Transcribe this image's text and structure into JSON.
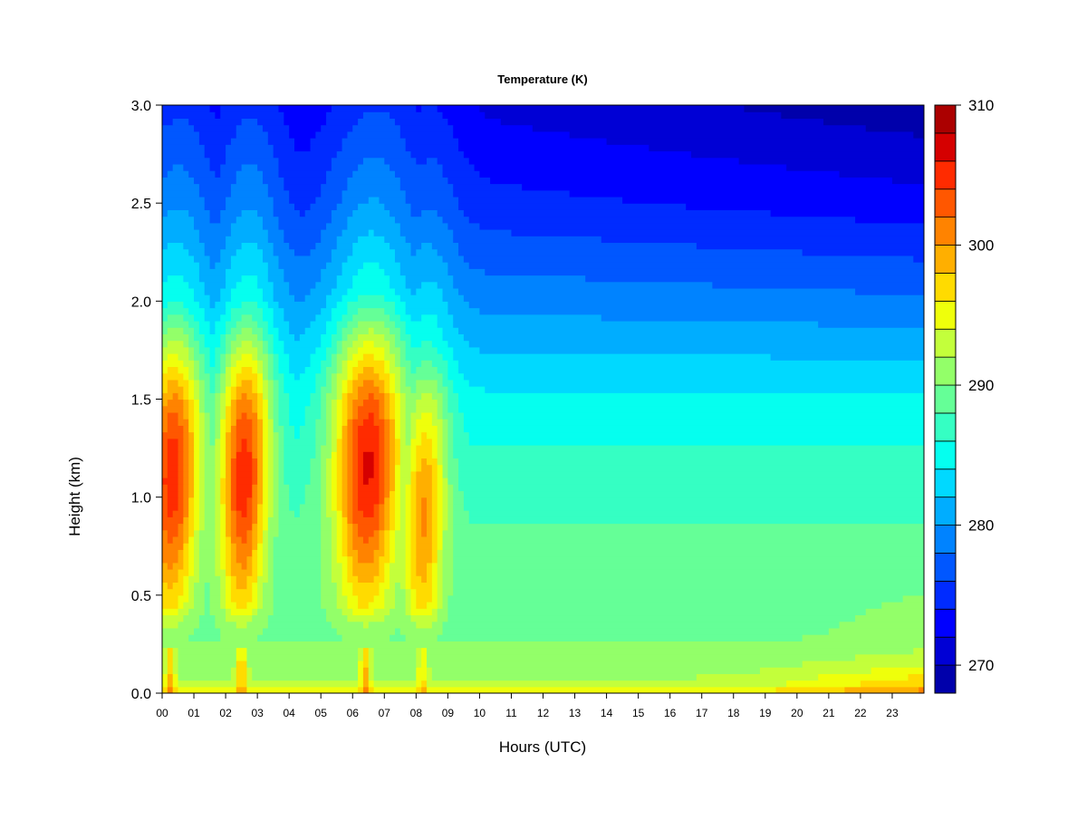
{
  "chart_data": {
    "type": "heatmap",
    "title": "Temperature (K)",
    "xlabel": "Hours (UTC)",
    "ylabel": "Height (km)",
    "xlim": [
      0,
      24
    ],
    "ylim": [
      0.0,
      3.0
    ],
    "x_ticks": [
      0,
      1,
      2,
      3,
      4,
      5,
      6,
      7,
      8,
      9,
      10,
      11,
      12,
      13,
      14,
      15,
      16,
      17,
      18,
      19,
      20,
      21,
      22,
      23
    ],
    "x_tick_labels": [
      "00",
      "01",
      "02",
      "03",
      "04",
      "05",
      "06",
      "07",
      "08",
      "09",
      "10",
      "11",
      "12",
      "13",
      "14",
      "15",
      "16",
      "17",
      "18",
      "19",
      "20",
      "21",
      "22",
      "23"
    ],
    "y_ticks": [
      0.0,
      0.5,
      1.0,
      1.5,
      2.0,
      2.5,
      3.0
    ],
    "y_tick_labels": [
      "0.0",
      "0.5",
      "1.0",
      "1.5",
      "2.0",
      "2.5",
      "3.0"
    ],
    "colorbar": {
      "range": [
        268,
        310
      ],
      "levels": [
        268,
        270,
        272,
        274,
        276,
        278,
        280,
        282,
        284,
        286,
        288,
        290,
        292,
        294,
        296,
        298,
        300,
        302,
        304,
        306,
        308,
        310
      ],
      "tick_values": [
        270,
        280,
        290,
        300,
        310
      ],
      "tick_labels": [
        "270",
        "280",
        "290",
        "300",
        "310"
      ],
      "colors": [
        "#00007f",
        "#0000ab",
        "#0000d5",
        "#0000ff",
        "#002bff",
        "#0057ff",
        "#0083ff",
        "#00adff",
        "#00d9ff",
        "#05ffef",
        "#35ffc3",
        "#65ff97",
        "#93ff69",
        "#c3ff3b",
        "#efff0b",
        "#ffdb00",
        "#ffaf00",
        "#ff8300",
        "#ff5700",
        "#ff2b00",
        "#d50000",
        "#ab0000",
        "#7f0000"
      ]
    },
    "grid": false,
    "features": {
      "background_profile": [
        {
          "height": 0.0,
          "temperature": 297
        },
        {
          "height": 0.05,
          "temperature": 294
        },
        {
          "height": 0.3,
          "temperature": 291.5
        },
        {
          "height": 0.6,
          "temperature": 291
        },
        {
          "height": 1.0,
          "temperature": 289.5
        },
        {
          "height": 1.5,
          "temperature": 286.5
        },
        {
          "height": 2.0,
          "temperature": 281.5
        },
        {
          "height": 2.5,
          "temperature": 277
        },
        {
          "height": 3.0,
          "temperature": 274
        }
      ],
      "warm_plumes": [
        {
          "center_hour": 0.25,
          "width_hours": 0.45,
          "peak_temperature": 307,
          "core_height": 1.2
        },
        {
          "center_hour": 2.5,
          "width_hours": 0.4,
          "peak_temperature": 307,
          "core_height": 1.2
        },
        {
          "center_hour": 6.4,
          "width_hours": 0.55,
          "peak_temperature": 308,
          "core_height": 1.25
        },
        {
          "center_hour": 8.2,
          "width_hours": 0.35,
          "peak_temperature": 302,
          "core_height": 1.0
        }
      ],
      "surface_warm_layer": {
        "start_hour": 16,
        "peak_hour": 23.5,
        "peak_temperature": 300,
        "depth": 0.15
      }
    }
  }
}
